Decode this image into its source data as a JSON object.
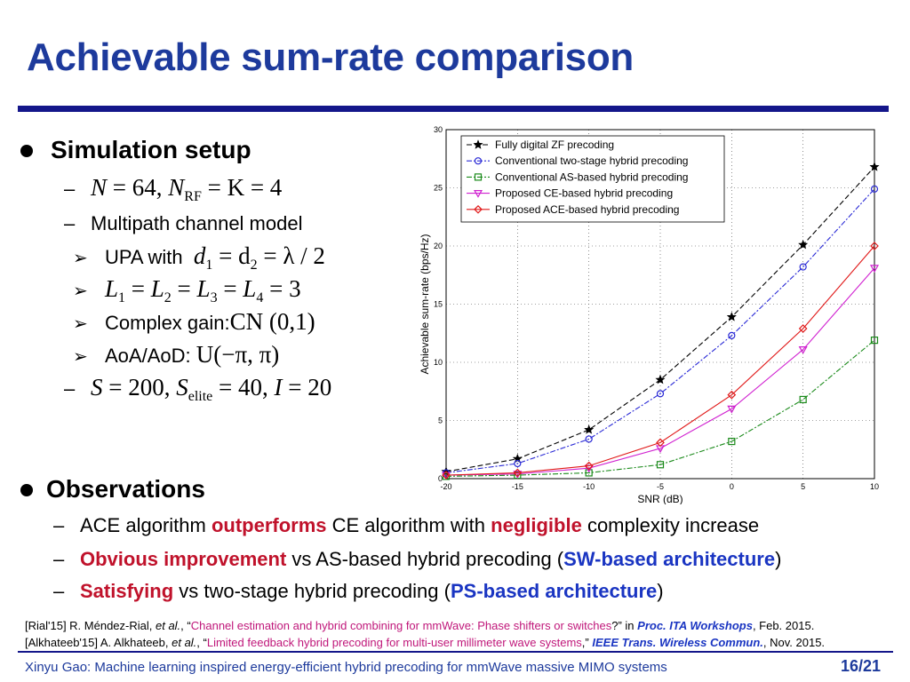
{
  "title": "Achievable sum-rate comparison",
  "setup": {
    "heading": "Simulation setup",
    "line1": {
      "N": "N",
      "eq1": " = 64,  ",
      "N2": "N",
      "rf": "RF",
      "rest": " = K = 4"
    },
    "multipath": "Multipath channel model",
    "upa_label": "UPA with",
    "upa_math": {
      "d1": "d",
      "s1": "1",
      "mid": " = d",
      "s2": "2",
      "rest": " = λ / 2"
    },
    "L_math": {
      "L": "L",
      "s1": "1",
      "s2": "2",
      "s3": "3",
      "s4": "4",
      "val": "3"
    },
    "gain_label": "Complex gain:",
    "gain_math": "CN (0,1)",
    "aoa_label": "AoA/AoD:",
    "aoa_math": "U(−π, π)",
    "s_math": {
      "S": "S",
      "eq": " = 200,  ",
      "S2": "S",
      "elite": "elite",
      "eq2": " = 40,  ",
      "I": "I",
      "eq3": " = 20"
    }
  },
  "observations": {
    "heading": "Observations",
    "o1": {
      "a": "ACE algorithm ",
      "b": "outperforms",
      "c": " CE algorithm with ",
      "d": "negligible",
      "e": " complexity increase"
    },
    "o2": {
      "a": "Obvious improvement",
      "b": " vs AS-based hybrid precoding (",
      "c": "SW-based architecture",
      "d": ")"
    },
    "o3": {
      "a": "Satisfying",
      "b": " vs two-stage hybrid precoding (",
      "c": "PS-based architecture",
      "d": ")"
    }
  },
  "refs": {
    "r1": {
      "a": "[Rial'15] R. Méndez-Rial, ",
      "b": "et al.",
      "c": ", “",
      "d": "Channel estimation and hybrid combining for mmWave: Phase shifters or switches",
      "e": "?” in ",
      "f": "Proc. ITA Workshops",
      "g": ", Feb. 2015."
    },
    "r2": {
      "a": "[Alkhateeb'15] A. Alkhateeb, ",
      "b": "et al.",
      "c": ", “",
      "d": "Limited feedback hybrid precoding for multi-user millimeter wave systems",
      "e": ",” ",
      "f": "IEEE Trans. Wireless Commun.",
      "g": ", Nov. 2015."
    }
  },
  "footer": "Xinyu Gao: Machine learning inspired energy-efficient hybrid precoding for mmWave massive MIMO systems",
  "page_number": "16/21",
  "colors": {
    "title": "#1d3a9c",
    "rule": "#14168a",
    "red": "#c0122b",
    "blue": "#1a35c2"
  },
  "chart_data": {
    "type": "line",
    "xlabel": "SNR (dB)",
    "ylabel": "Achievable sum-rate (bps/Hz)",
    "x": [
      -20,
      -15,
      -10,
      -5,
      0,
      5,
      10
    ],
    "xlim": [
      -20,
      10
    ],
    "ylim": [
      0,
      30
    ],
    "xticks": [
      "-20",
      "-15",
      "-10",
      "-5",
      "0",
      "5",
      "10"
    ],
    "yticks": [
      "0",
      "5",
      "10",
      "15",
      "20",
      "25",
      "30"
    ],
    "grid": true,
    "legend_position": "top-left",
    "series": [
      {
        "name": "Fully digital ZF precoding",
        "values": [
          0.6,
          1.7,
          4.2,
          8.5,
          13.9,
          20.1,
          26.8
        ],
        "color": "#000000",
        "marker": "star",
        "dash": "6,3"
      },
      {
        "name": "Conventional two-stage hybrid precoding",
        "values": [
          0.5,
          1.3,
          3.4,
          7.3,
          12.3,
          18.2,
          24.9
        ],
        "color": "#2a2ad6",
        "marker": "circle",
        "dash": "6,2,2,2"
      },
      {
        "name": "Conventional AS-based hybrid precoding",
        "values": [
          0.2,
          0.3,
          0.5,
          1.2,
          3.2,
          6.8,
          11.9
        ],
        "color": "#1a8a1a",
        "marker": "square",
        "dash": "6,2,2,2"
      },
      {
        "name": "Proposed CE-based hybrid precoding",
        "values": [
          0.3,
          0.4,
          0.9,
          2.6,
          6.0,
          11.1,
          18.1
        ],
        "color": "#d020d0",
        "marker": "triangle",
        "dash": ""
      },
      {
        "name": "Proposed ACE-based hybrid precoding",
        "values": [
          0.3,
          0.5,
          1.1,
          3.1,
          7.2,
          12.9,
          20.0
        ],
        "color": "#e01818",
        "marker": "diamond",
        "dash": ""
      }
    ]
  }
}
